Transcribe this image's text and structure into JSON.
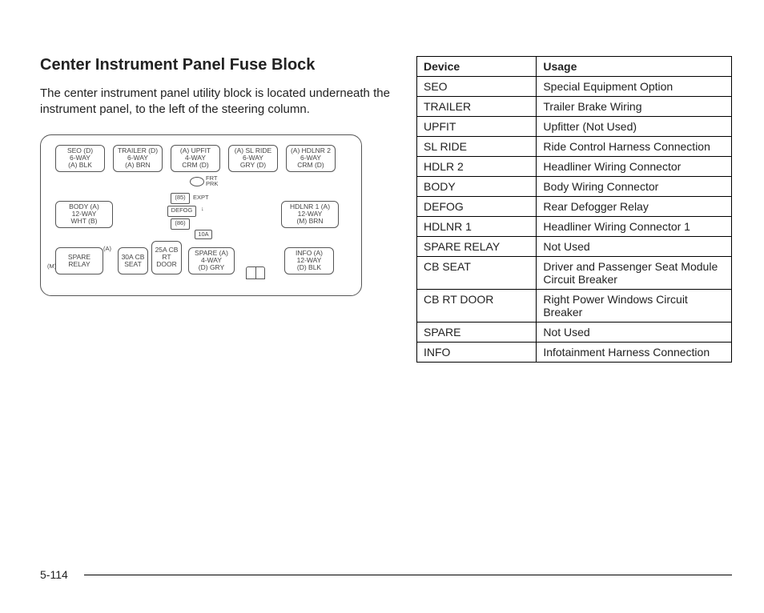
{
  "title": "Center Instrument Panel Fuse Block",
  "body_text": "The center instrument panel utility block is located underneath the instrument panel, to the left of the steering column.",
  "page_number": "5-114",
  "diagram": {
    "rowA": [
      {
        "l1": "SEO  (D)",
        "l2": "6-WAY",
        "l3": "(A)  BLK"
      },
      {
        "l1": "TRAILER (D)",
        "l2": "6-WAY",
        "l3": "(A)  BRN"
      },
      {
        "l1": "(A)  UPFIT",
        "l2": "4-WAY",
        "l3": "CRM  (D)"
      },
      {
        "l1": "(A)  SL RIDE",
        "l2": "6-WAY",
        "l3": "GRY  (D)"
      },
      {
        "l1": "(A) HDLNR 2",
        "l2": "6-WAY",
        "l3": "CRM (D)"
      }
    ],
    "rowB_left": {
      "l1": "BODY  (A)",
      "l2": "12-WAY",
      "l3": "WHT  (B)"
    },
    "rowB_right": {
      "l1": "HDLNR 1 (A)",
      "l2": "12-WAY",
      "l3": "(M)  BRN"
    },
    "rowC": {
      "spare_relay": {
        "l1": "SPARE",
        "l2": "RELAY",
        "tag_left": "(M)",
        "tag_right": "(A)"
      },
      "cb_seat": {
        "l1": "30A CB",
        "l2": "SEAT"
      },
      "cb_rt": {
        "l1": "25A CB",
        "l2": "RT",
        "l3": "DOOR"
      },
      "spare4": {
        "l1": "SPARE (A)",
        "l2": "4-WAY",
        "l3": "(D)  GRY"
      },
      "info": {
        "l1": "INFO  (A)",
        "l2": "12-WAY",
        "l3": "(D)  BLK"
      }
    },
    "mid": {
      "frt_prk": "FRT\nPRK",
      "b85": "(85)",
      "expt": "EXPT",
      "defog": "DEFOG",
      "b86": "(86)",
      "t10a": "10A"
    }
  },
  "table": {
    "headers": [
      "Device",
      "Usage"
    ],
    "rows": [
      [
        "SEO",
        "Special Equipment Option"
      ],
      [
        "TRAILER",
        "Trailer Brake Wiring"
      ],
      [
        "UPFIT",
        "Upfitter (Not Used)"
      ],
      [
        "SL RIDE",
        "Ride Control Harness Connection"
      ],
      [
        "HDLR 2",
        "Headliner Wiring Connector"
      ],
      [
        "BODY",
        "Body Wiring Connector"
      ],
      [
        "DEFOG",
        "Rear Defogger Relay"
      ],
      [
        "HDLNR 1",
        "Headliner Wiring Connector 1"
      ],
      [
        "SPARE RELAY",
        "Not Used"
      ],
      [
        "CB SEAT",
        "Driver and Passenger Seat Module Circuit Breaker"
      ],
      [
        "CB RT DOOR",
        "Right Power Windows Circuit Breaker"
      ],
      [
        "SPARE",
        "Not Used"
      ],
      [
        "INFO",
        "Infotainment Harness Connection"
      ]
    ]
  }
}
